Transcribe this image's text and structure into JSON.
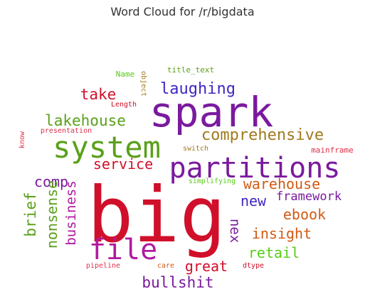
{
  "title": "Word Cloud for /r/bigdata",
  "colors": {
    "red": "#d0102a",
    "purple": "#7a1a9e",
    "green": "#5aa01a",
    "blue": "#3d27c2",
    "orange": "#d05a14",
    "olive": "#a07a1e",
    "magenta": "#b01aa0",
    "lime": "#58cc16",
    "pink": "#e0304a"
  },
  "words": [
    {
      "text": "big",
      "color": "red"
    },
    {
      "text": "spark",
      "color": "purple"
    },
    {
      "text": "system",
      "color": "green"
    },
    {
      "text": "partitions",
      "color": "purple"
    },
    {
      "text": "file",
      "color": "magenta"
    },
    {
      "text": "lakehouse",
      "color": "green"
    },
    {
      "text": "laughing",
      "color": "blue"
    },
    {
      "text": "take",
      "color": "red"
    },
    {
      "text": "comprehensive",
      "color": "olive"
    },
    {
      "text": "service",
      "color": "red"
    },
    {
      "text": "comp",
      "color": "purple"
    },
    {
      "text": "warehouse",
      "color": "orange"
    },
    {
      "text": "framework",
      "color": "purple"
    },
    {
      "text": "new",
      "color": "blue"
    },
    {
      "text": "ebook",
      "color": "orange"
    },
    {
      "text": "insight",
      "color": "orange"
    },
    {
      "text": "retail",
      "color": "lime"
    },
    {
      "text": "great",
      "color": "red"
    },
    {
      "text": "bullshit",
      "color": "purple"
    },
    {
      "text": "nex",
      "color": "purple"
    },
    {
      "text": "brief",
      "color": "green"
    },
    {
      "text": "nonsense",
      "color": "green"
    },
    {
      "text": "business",
      "color": "magenta"
    },
    {
      "text": "title_text",
      "color": "green"
    },
    {
      "text": "Name",
      "color": "lime"
    },
    {
      "text": "object",
      "color": "olive"
    },
    {
      "text": "Length",
      "color": "red"
    },
    {
      "text": "presentation",
      "color": "pink"
    },
    {
      "text": "know",
      "color": "pink"
    },
    {
      "text": "switch",
      "color": "olive"
    },
    {
      "text": "simplifying",
      "color": "lime"
    },
    {
      "text": "mainframe",
      "color": "pink"
    },
    {
      "text": "pipeline",
      "color": "pink"
    },
    {
      "text": "care",
      "color": "orange"
    },
    {
      "text": "dtype",
      "color": "red"
    }
  ]
}
